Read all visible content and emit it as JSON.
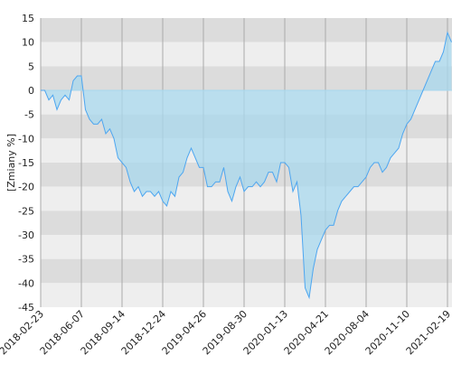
{
  "chart_data": {
    "type": "area",
    "y_label": "[Zmiany %]",
    "categories": [
      "2018-02-23",
      null,
      null,
      null,
      null,
      null,
      null,
      null,
      null,
      null,
      "2018-06-07",
      null,
      null,
      null,
      null,
      null,
      null,
      null,
      null,
      null,
      "2018-09-14",
      null,
      null,
      null,
      null,
      null,
      null,
      null,
      null,
      null,
      "2018-12-24",
      null,
      null,
      null,
      null,
      null,
      null,
      null,
      null,
      null,
      "2019-04-26",
      null,
      null,
      null,
      null,
      null,
      null,
      null,
      null,
      null,
      "2019-08-30",
      null,
      null,
      null,
      null,
      null,
      null,
      null,
      null,
      null,
      "2020-01-13",
      null,
      null,
      null,
      null,
      null,
      null,
      null,
      null,
      null,
      "2020-04-21",
      null,
      null,
      null,
      null,
      null,
      null,
      null,
      null,
      null,
      "2020-08-04",
      null,
      null,
      null,
      null,
      null,
      null,
      null,
      null,
      null,
      "2020-11-10",
      null,
      null,
      null,
      null,
      null,
      null,
      null,
      null,
      null,
      "2021-02-19",
      null
    ],
    "values": [
      0,
      0,
      -2,
      -1,
      -4,
      -2,
      -1,
      -2,
      2,
      3,
      3,
      -4,
      -6,
      -7,
      -7,
      -6,
      -9,
      -8,
      -10,
      -14,
      -15,
      -16,
      -19,
      -21,
      -20,
      -22,
      -21,
      -21,
      -22,
      -21,
      -23,
      -24,
      -21,
      -22,
      -18,
      -17,
      -14,
      -12,
      -14,
      -16,
      -16,
      -20,
      -20,
      -19,
      -19,
      -16,
      -21,
      -23,
      -20,
      -18,
      -21,
      -20,
      -20,
      -19,
      -20,
      -19,
      -17,
      -17,
      -19,
      -15,
      -15,
      -16,
      -21,
      -19,
      -26,
      -41,
      -43,
      -37,
      -33,
      -31,
      -29,
      -28,
      -28,
      -25,
      -23,
      -22,
      -21,
      -20,
      -20,
      -19,
      -18,
      -16,
      -15,
      -15,
      -17,
      -16,
      -14,
      -13,
      -12,
      -9,
      -7,
      -6,
      -4,
      -2,
      0,
      2,
      4,
      6,
      6,
      8,
      12,
      10
    ],
    "ylim": [
      -45,
      15
    ],
    "yticks": [
      15,
      10,
      5,
      0,
      -5,
      -10,
      -15,
      -20,
      -25,
      -30,
      -35,
      -40,
      -45
    ],
    "grid": true,
    "band_colors": [
      "#dcdcdc",
      "#eeeeee"
    ],
    "line_color": "#4da6f0",
    "fill_color": "#a8d8ee"
  }
}
